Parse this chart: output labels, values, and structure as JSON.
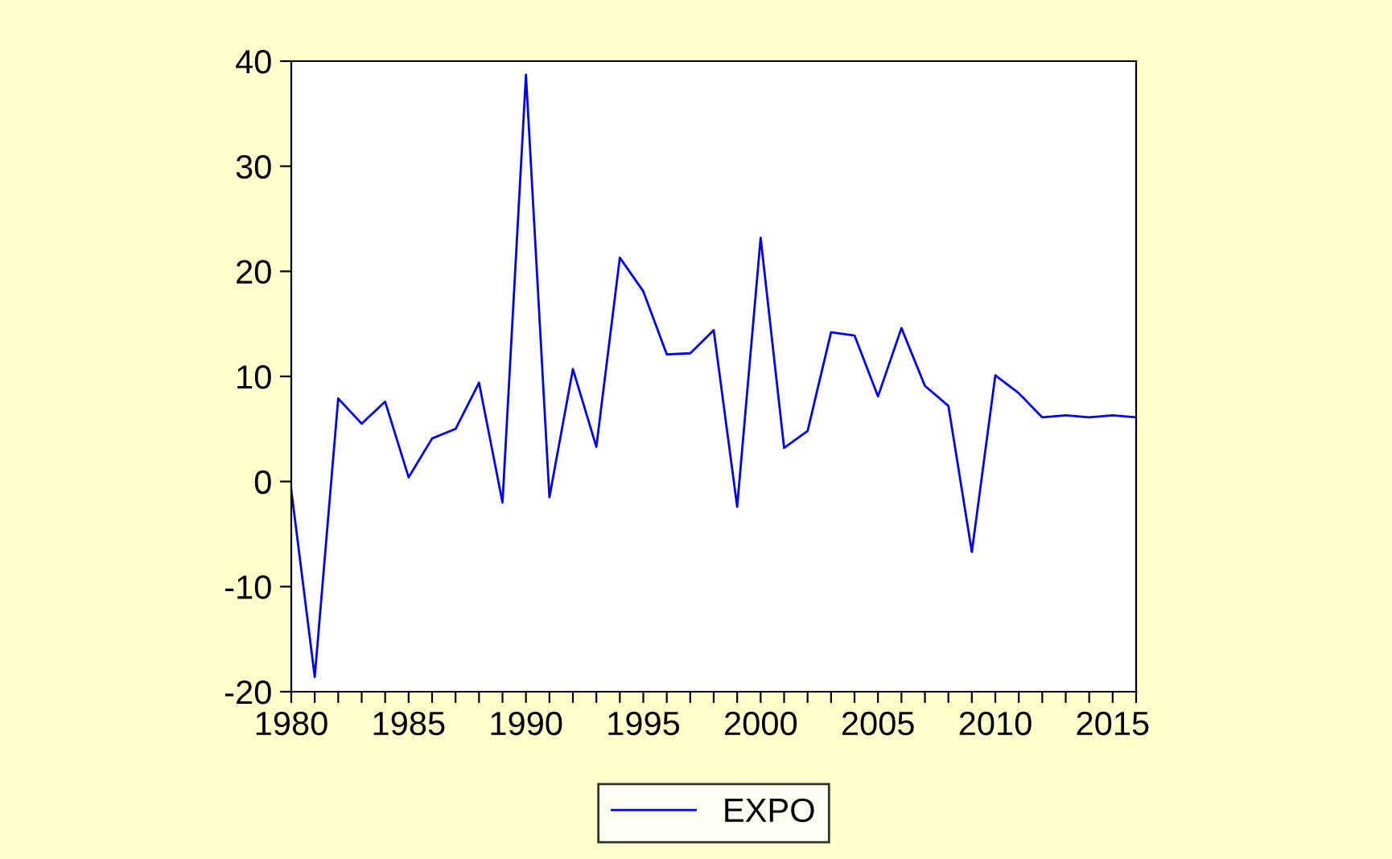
{
  "chart_data": {
    "type": "line",
    "x": [
      1980,
      1981,
      1982,
      1983,
      1984,
      1985,
      1986,
      1987,
      1988,
      1989,
      1990,
      1991,
      1992,
      1993,
      1994,
      1995,
      1996,
      1997,
      1998,
      1999,
      2000,
      2001,
      2002,
      2003,
      2004,
      2005,
      2006,
      2007,
      2008,
      2009,
      2010,
      2011,
      2012,
      2013,
      2014,
      2015,
      2016
    ],
    "series": [
      {
        "name": "EXPO",
        "color": "#0000ff",
        "values": [
          -0.8,
          -18.6,
          7.9,
          5.5,
          7.6,
          0.4,
          4.1,
          5.0,
          9.4,
          -2.0,
          38.7,
          -1.5,
          10.7,
          3.3,
          21.3,
          18.1,
          12.1,
          12.2,
          14.4,
          -2.4,
          23.2,
          3.2,
          4.8,
          14.2,
          13.9,
          8.1,
          14.6,
          9.1,
          7.2,
          -6.7,
          10.1,
          8.4,
          6.1,
          6.3,
          6.1,
          6.3,
          6.1
        ]
      }
    ],
    "xlim": [
      1980,
      2016
    ],
    "xticks": [
      1980,
      {
        "value": 1981,
        "label": null
      },
      {
        "value": 1982,
        "label": null
      },
      {
        "value": 1983,
        "label": null
      },
      {
        "value": 1984,
        "label": null
      },
      1985,
      {
        "value": 1986,
        "label": null
      },
      {
        "value": 1987,
        "label": null
      },
      {
        "value": 1988,
        "label": null
      },
      {
        "value": 1989,
        "label": null
      },
      1990,
      {
        "value": 1991,
        "label": null
      },
      {
        "value": 1992,
        "label": null
      },
      {
        "value": 1993,
        "label": null
      },
      {
        "value": 1994,
        "label": null
      },
      1995,
      {
        "value": 1996,
        "label": null
      },
      {
        "value": 1997,
        "label": null
      },
      {
        "value": 1998,
        "label": null
      },
      {
        "value": 1999,
        "label": null
      },
      2000,
      {
        "value": 2001,
        "label": null
      },
      {
        "value": 2002,
        "label": null
      },
      {
        "value": 2003,
        "label": null
      },
      {
        "value": 2004,
        "label": null
      },
      2005,
      {
        "value": 2006,
        "label": null
      },
      {
        "value": 2007,
        "label": null
      },
      {
        "value": 2008,
        "label": null
      },
      {
        "value": 2009,
        "label": null
      },
      2010,
      {
        "value": 2011,
        "label": null
      },
      {
        "value": 2012,
        "label": null
      },
      {
        "value": 2013,
        "label": null
      },
      {
        "value": 2014,
        "label": null
      },
      2015,
      {
        "value": 2016,
        "label": null
      }
    ],
    "ylim": [
      -20,
      40
    ],
    "yticks": [
      -20,
      -10,
      0,
      10,
      20,
      30,
      40
    ],
    "grid": false,
    "legend": "bottom",
    "marker": "none",
    "line_style": "solid"
  }
}
